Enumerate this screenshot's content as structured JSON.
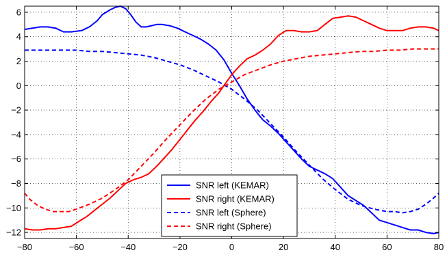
{
  "chart_data": {
    "type": "line",
    "title": "",
    "xlabel": "",
    "ylabel": "",
    "xlim": [
      -80,
      80
    ],
    "ylim": [
      -12.5,
      6.5
    ],
    "xticks": [
      -80,
      -60,
      -40,
      -20,
      0,
      20,
      40,
      60,
      80
    ],
    "yticks": [
      -12,
      -10,
      -8,
      -6,
      -4,
      -2,
      0,
      2,
      4,
      6
    ],
    "grid": true,
    "legend_position": "bottom-center",
    "series": [
      {
        "name": "SNR left (KEMAR)",
        "color": "#0000ff",
        "dash": "solid",
        "x": [
          -80,
          -77,
          -74,
          -71,
          -68,
          -65,
          -62,
          -58,
          -55,
          -52,
          -50,
          -47,
          -45,
          -43,
          -41,
          -39,
          -37,
          -35,
          -33,
          -31,
          -29,
          -27,
          -24,
          -21,
          -18,
          -15,
          -12,
          -9,
          -6,
          -3,
          0,
          3,
          6,
          9,
          12,
          15,
          18,
          21,
          24,
          27,
          30,
          33,
          36,
          39,
          42,
          45,
          48,
          51,
          54,
          57,
          60,
          63,
          66,
          69,
          72,
          75,
          78,
          80
        ],
        "y": [
          4.6,
          4.7,
          4.8,
          4.8,
          4.7,
          4.4,
          4.4,
          4.5,
          4.8,
          5.3,
          5.8,
          6.2,
          6.4,
          6.5,
          6.3,
          5.8,
          5.2,
          4.8,
          4.8,
          4.9,
          5.0,
          5.0,
          4.9,
          4.7,
          4.4,
          4.1,
          3.8,
          3.4,
          2.9,
          2.1,
          1.0,
          0.0,
          -1.1,
          -2.0,
          -2.8,
          -3.3,
          -3.9,
          -4.6,
          -5.3,
          -6.0,
          -6.6,
          -6.9,
          -7.2,
          -7.6,
          -8.3,
          -9.0,
          -9.4,
          -9.8,
          -10.4,
          -11.0,
          -11.2,
          -11.4,
          -11.6,
          -11.8,
          -11.8,
          -12.0,
          -12.1,
          -12.0
        ]
      },
      {
        "name": "SNR right (KEMAR)",
        "color": "#ff0000",
        "dash": "solid",
        "x": [
          -80,
          -77,
          -74,
          -71,
          -68,
          -65,
          -62,
          -59,
          -56,
          -53,
          -50,
          -47,
          -44,
          -41,
          -38,
          -35,
          -32,
          -29,
          -26,
          -23,
          -20,
          -17,
          -14,
          -11,
          -8,
          -5,
          -2,
          0,
          3,
          6,
          9,
          12,
          15,
          18,
          21,
          24,
          27,
          30,
          33,
          36,
          39,
          42,
          45,
          48,
          51,
          54,
          57,
          60,
          63,
          66,
          69,
          72,
          75,
          78,
          80
        ],
        "y": [
          -11.7,
          -11.8,
          -11.8,
          -11.7,
          -11.7,
          -11.6,
          -11.5,
          -11.1,
          -10.7,
          -10.2,
          -9.7,
          -9.2,
          -8.6,
          -8.0,
          -7.7,
          -7.5,
          -7.2,
          -6.6,
          -5.9,
          -5.2,
          -4.4,
          -3.6,
          -2.8,
          -2.1,
          -1.3,
          -0.6,
          0.3,
          0.9,
          1.6,
          2.2,
          2.5,
          2.9,
          3.4,
          4.1,
          4.5,
          4.5,
          4.4,
          4.4,
          4.5,
          5.0,
          5.5,
          5.6,
          5.7,
          5.6,
          5.3,
          5.0,
          4.7,
          4.5,
          4.5,
          4.5,
          4.7,
          4.8,
          4.8,
          4.7,
          4.5
        ]
      },
      {
        "name": "SNR left (Sphere)",
        "color": "#0000ff",
        "dash": "dashed",
        "x": [
          -80,
          -75,
          -70,
          -65,
          -60,
          -55,
          -50,
          -45,
          -40,
          -35,
          -30,
          -25,
          -20,
          -15,
          -10,
          -5,
          0,
          5,
          10,
          15,
          20,
          25,
          30,
          35,
          40,
          45,
          50,
          55,
          60,
          63,
          66,
          69,
          72,
          75,
          78,
          80
        ],
        "y": [
          2.9,
          2.9,
          2.9,
          2.9,
          2.9,
          2.8,
          2.8,
          2.7,
          2.6,
          2.5,
          2.3,
          2.0,
          1.7,
          1.3,
          0.8,
          0.3,
          -0.3,
          -1.1,
          -2.0,
          -3.1,
          -4.2,
          -5.4,
          -6.5,
          -7.6,
          -8.5,
          -9.3,
          -9.8,
          -10.1,
          -10.3,
          -10.3,
          -10.4,
          -10.3,
          -10.1,
          -9.7,
          -9.2,
          -8.8
        ]
      },
      {
        "name": "SNR right (Sphere)",
        "color": "#ff0000",
        "dash": "dashed",
        "x": [
          -80,
          -78,
          -75,
          -72,
          -69,
          -66,
          -63,
          -60,
          -55,
          -50,
          -45,
          -40,
          -35,
          -30,
          -25,
          -20,
          -15,
          -10,
          -5,
          0,
          5,
          10,
          15,
          20,
          25,
          30,
          35,
          40,
          45,
          50,
          55,
          60,
          65,
          70,
          75,
          80
        ],
        "y": [
          -8.8,
          -9.3,
          -9.8,
          -10.1,
          -10.3,
          -10.3,
          -10.3,
          -10.1,
          -9.7,
          -9.2,
          -8.5,
          -7.7,
          -6.6,
          -5.5,
          -4.3,
          -3.2,
          -2.1,
          -1.1,
          -0.3,
          0.3,
          0.9,
          1.3,
          1.7,
          2.0,
          2.2,
          2.4,
          2.5,
          2.6,
          2.7,
          2.8,
          2.8,
          2.9,
          2.9,
          3.0,
          3.0,
          3.0
        ]
      }
    ]
  }
}
